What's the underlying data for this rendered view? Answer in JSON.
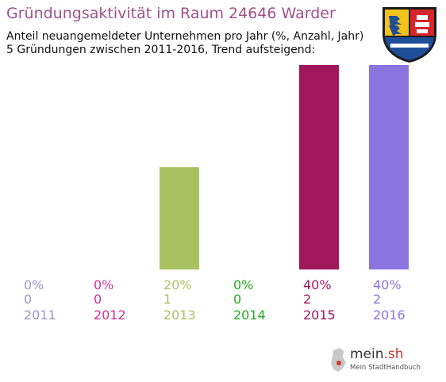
{
  "chart_data": {
    "type": "bar",
    "title": "Gründungsaktivität im Raum 24646 Warder",
    "subtitle_line1": "Anteil neuangemeldeter Unternehmen pro Jahr (%, Anzahl, Jahr)",
    "subtitle_line2": "5 Gründungen zwischen 2011-2016, Trend aufsteigend:",
    "categories": [
      "2011",
      "2012",
      "2013",
      "2014",
      "2015",
      "2016"
    ],
    "percent_labels": [
      "0%",
      "0%",
      "20%",
      "0%",
      "40%",
      "40%"
    ],
    "count_labels": [
      "0",
      "0",
      "1",
      "0",
      "2",
      "2"
    ],
    "values": [
      0,
      0,
      1,
      0,
      2,
      2
    ],
    "colors": [
      "#9999cc",
      "#cc3399",
      "#a8c262",
      "#22aa22",
      "#a0185a",
      "#8a74e0"
    ],
    "ylim": [
      0,
      2
    ],
    "grid": false
  },
  "logo": {
    "name_main": "mein",
    "name_tld": ".sh",
    "tagline": "Mein StadtHandbuch"
  }
}
